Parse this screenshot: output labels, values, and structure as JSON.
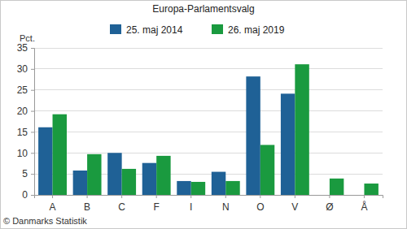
{
  "chart_data": {
    "type": "bar",
    "title": "Europa-Parlamentsvalg",
    "y_label": "Pct.",
    "source": "© Danmarks Statistik",
    "categories": [
      "A",
      "B",
      "C",
      "F",
      "I",
      "N",
      "O",
      "V",
      "Ø",
      "Å"
    ],
    "series": [
      {
        "name": "25. maj 2014",
        "color": "#1f6196",
        "values": [
          16.1,
          5.8,
          10.0,
          7.6,
          3.3,
          5.5,
          28.2,
          24.1,
          null,
          null
        ]
      },
      {
        "name": "26. maj 2019",
        "color": "#1a9a3f",
        "values": [
          19.2,
          9.7,
          6.2,
          9.3,
          3.1,
          3.3,
          11.9,
          31.1,
          3.9,
          2.7
        ]
      }
    ],
    "ylim": [
      0,
      35
    ],
    "yticks": [
      0,
      5,
      10,
      15,
      20,
      25,
      30,
      35
    ],
    "grid": true,
    "legend": "top"
  }
}
